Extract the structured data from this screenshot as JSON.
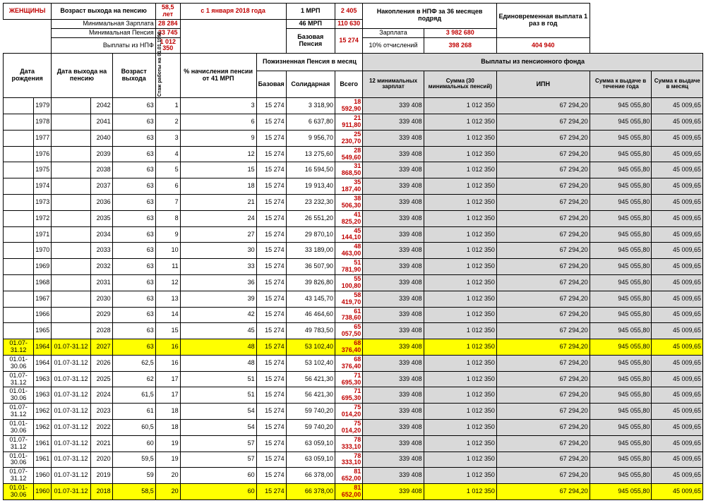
{
  "top": {
    "gender": "ЖЕНЩИНЫ",
    "retire_age_label": "Возраст выхода на пенсию",
    "retire_age": "58,5  лет",
    "from_date": "с 1 января 2018 года",
    "min_salary_label": "Минимальная  Зарплата",
    "min_salary": "28 284",
    "min_pension_label": "Минимальная  Пенсия",
    "min_pension": "33 745",
    "npf_payout_label": "Выплаты из НПФ",
    "npf_payout": "1 012 350",
    "mrp1_label": "1 МРП",
    "mrp1": "2 405",
    "mrp46_label": "46 МРП",
    "mrp46": "110 630",
    "base_pension_label": "Базовая Пенсия",
    "base_pension": "15 274",
    "npf36_label": "Накопления в НПФ за 36 месяцев подряд",
    "salary_label": "Зарплата",
    "salary_val": "3 982 680",
    "ded10_label": "10% отчислений",
    "ded10_val": "398 268",
    "once_label": "Единовременная выплата 1 раз в год",
    "once_val": "404 940"
  },
  "headers": {
    "birth": "Дата рождения",
    "retire_date": "Дата выхода на пенсию",
    "age": "Возраст выхода",
    "stazh": "Стаж работы на 01.01.1998",
    "pct": "% начисления пенсии от 41 МРП",
    "life_pension": "Пожизненная Пенсия в месяц",
    "base": "Базовая",
    "solid": "Солидарная",
    "total": "Всего",
    "fund": "Выплаты из пенсионного фонда",
    "min12": "12 минимальных зарплат",
    "sum30": "Сумма (30 минимальных пенсий)",
    "ipn": "ИПН",
    "year_pay": "Сумма к выдаче в течение года",
    "month_pay": "Сумма к выдаче в месяц"
  },
  "rows": [
    {
      "b1": "",
      "b2": "1979",
      "r1": "",
      "r2": "2042",
      "age": "63",
      "st": "1",
      "pct": "3",
      "base": "15 274",
      "sol": "3 318,90",
      "tot": "18 592,90",
      "m12": "339 408",
      "s30": "1 012 350",
      "ipn": "67 294,20",
      "yp": "945 055,80",
      "mp": "45 009,65"
    },
    {
      "b1": "",
      "b2": "1978",
      "r1": "",
      "r2": "2041",
      "age": "63",
      "st": "2",
      "pct": "6",
      "base": "15 274",
      "sol": "6 637,80",
      "tot": "21 911,80",
      "m12": "339 408",
      "s30": "1 012 350",
      "ipn": "67 294,20",
      "yp": "945 055,80",
      "mp": "45 009,65"
    },
    {
      "b1": "",
      "b2": "1977",
      "r1": "",
      "r2": "2040",
      "age": "63",
      "st": "3",
      "pct": "9",
      "base": "15 274",
      "sol": "9 956,70",
      "tot": "25 230,70",
      "m12": "339 408",
      "s30": "1 012 350",
      "ipn": "67 294,20",
      "yp": "945 055,80",
      "mp": "45 009,65"
    },
    {
      "b1": "",
      "b2": "1976",
      "r1": "",
      "r2": "2039",
      "age": "63",
      "st": "4",
      "pct": "12",
      "base": "15 274",
      "sol": "13 275,60",
      "tot": "28 549,60",
      "m12": "339 408",
      "s30": "1 012 350",
      "ipn": "67 294,20",
      "yp": "945 055,80",
      "mp": "45 009,65"
    },
    {
      "b1": "",
      "b2": "1975",
      "r1": "",
      "r2": "2038",
      "age": "63",
      "st": "5",
      "pct": "15",
      "base": "15 274",
      "sol": "16 594,50",
      "tot": "31 868,50",
      "m12": "339 408",
      "s30": "1 012 350",
      "ipn": "67 294,20",
      "yp": "945 055,80",
      "mp": "45 009,65"
    },
    {
      "b1": "",
      "b2": "1974",
      "r1": "",
      "r2": "2037",
      "age": "63",
      "st": "6",
      "pct": "18",
      "base": "15 274",
      "sol": "19 913,40",
      "tot": "35 187,40",
      "m12": "339 408",
      "s30": "1 012 350",
      "ipn": "67 294,20",
      "yp": "945 055,80",
      "mp": "45 009,65"
    },
    {
      "b1": "",
      "b2": "1973",
      "r1": "",
      "r2": "2036",
      "age": "63",
      "st": "7",
      "pct": "21",
      "base": "15 274",
      "sol": "23 232,30",
      "tot": "38 506,30",
      "m12": "339 408",
      "s30": "1 012 350",
      "ipn": "67 294,20",
      "yp": "945 055,80",
      "mp": "45 009,65"
    },
    {
      "b1": "",
      "b2": "1972",
      "r1": "",
      "r2": "2035",
      "age": "63",
      "st": "8",
      "pct": "24",
      "base": "15 274",
      "sol": "26 551,20",
      "tot": "41 825,20",
      "m12": "339 408",
      "s30": "1 012 350",
      "ipn": "67 294,20",
      "yp": "945 055,80",
      "mp": "45 009,65"
    },
    {
      "b1": "",
      "b2": "1971",
      "r1": "",
      "r2": "2034",
      "age": "63",
      "st": "9",
      "pct": "27",
      "base": "15 274",
      "sol": "29 870,10",
      "tot": "45 144,10",
      "m12": "339 408",
      "s30": "1 012 350",
      "ipn": "67 294,20",
      "yp": "945 055,80",
      "mp": "45 009,65"
    },
    {
      "b1": "",
      "b2": "1970",
      "r1": "",
      "r2": "2033",
      "age": "63",
      "st": "10",
      "pct": "30",
      "base": "15 274",
      "sol": "33 189,00",
      "tot": "48 463,00",
      "m12": "339 408",
      "s30": "1 012 350",
      "ipn": "67 294,20",
      "yp": "945 055,80",
      "mp": "45 009,65"
    },
    {
      "b1": "",
      "b2": "1969",
      "r1": "",
      "r2": "2032",
      "age": "63",
      "st": "11",
      "pct": "33",
      "base": "15 274",
      "sol": "36 507,90",
      "tot": "51 781,90",
      "m12": "339 408",
      "s30": "1 012 350",
      "ipn": "67 294,20",
      "yp": "945 055,80",
      "mp": "45 009,65"
    },
    {
      "b1": "",
      "b2": "1968",
      "r1": "",
      "r2": "2031",
      "age": "63",
      "st": "12",
      "pct": "36",
      "base": "15 274",
      "sol": "39 826,80",
      "tot": "55 100,80",
      "m12": "339 408",
      "s30": "1 012 350",
      "ipn": "67 294,20",
      "yp": "945 055,80",
      "mp": "45 009,65"
    },
    {
      "b1": "",
      "b2": "1967",
      "r1": "",
      "r2": "2030",
      "age": "63",
      "st": "13",
      "pct": "39",
      "base": "15 274",
      "sol": "43 145,70",
      "tot": "58 419,70",
      "m12": "339 408",
      "s30": "1 012 350",
      "ipn": "67 294,20",
      "yp": "945 055,80",
      "mp": "45 009,65"
    },
    {
      "b1": "",
      "b2": "1966",
      "r1": "",
      "r2": "2029",
      "age": "63",
      "st": "14",
      "pct": "42",
      "base": "15 274",
      "sol": "46 464,60",
      "tot": "61 738,60",
      "m12": "339 408",
      "s30": "1 012 350",
      "ipn": "67 294,20",
      "yp": "945 055,80",
      "mp": "45 009,65"
    },
    {
      "b1": "",
      "b2": "1965",
      "r1": "",
      "r2": "2028",
      "age": "63",
      "st": "15",
      "pct": "45",
      "base": "15 274",
      "sol": "49 783,50",
      "tot": "65 057,50",
      "m12": "339 408",
      "s30": "1 012 350",
      "ipn": "67 294,20",
      "yp": "945 055,80",
      "mp": "45 009,65"
    },
    {
      "b1": "01.07-31.12",
      "b2": "1964",
      "r1": "01.07-31.12",
      "r2": "2027",
      "age": "63",
      "st": "16",
      "pct": "48",
      "base": "15 274",
      "sol": "53 102,40",
      "tot": "68 376,40",
      "m12": "339 408",
      "s30": "1 012 350",
      "ipn": "67 294,20",
      "yp": "945 055,80",
      "mp": "45 009,65",
      "hl": true
    },
    {
      "b1": "01.01-30.06",
      "b2": "1964",
      "r1": "01.07-31.12",
      "r2": "2026",
      "age": "62,5",
      "st": "16",
      "pct": "48",
      "base": "15 274",
      "sol": "53 102,40",
      "tot": "68 376,40",
      "m12": "339 408",
      "s30": "1 012 350",
      "ipn": "67 294,20",
      "yp": "945 055,80",
      "mp": "45 009,65"
    },
    {
      "b1": "01.07-31.12",
      "b2": "1963",
      "r1": "01.07-31.12",
      "r2": "2025",
      "age": "62",
      "st": "17",
      "pct": "51",
      "base": "15 274",
      "sol": "56 421,30",
      "tot": "71 695,30",
      "m12": "339 408",
      "s30": "1 012 350",
      "ipn": "67 294,20",
      "yp": "945 055,80",
      "mp": "45 009,65"
    },
    {
      "b1": "01.01-30.06",
      "b2": "1963",
      "r1": "01.07-31.12",
      "r2": "2024",
      "age": "61,5",
      "st": "17",
      "pct": "51",
      "base": "15 274",
      "sol": "56 421,30",
      "tot": "71 695,30",
      "m12": "339 408",
      "s30": "1 012 350",
      "ipn": "67 294,20",
      "yp": "945 055,80",
      "mp": "45 009,65"
    },
    {
      "b1": "01.07-31.12",
      "b2": "1962",
      "r1": "01.07-31.12",
      "r2": "2023",
      "age": "61",
      "st": "18",
      "pct": "54",
      "base": "15 274",
      "sol": "59 740,20",
      "tot": "75 014,20",
      "m12": "339 408",
      "s30": "1 012 350",
      "ipn": "67 294,20",
      "yp": "945 055,80",
      "mp": "45 009,65"
    },
    {
      "b1": "01.01-30.06",
      "b2": "1962",
      "r1": "01.07-31.12",
      "r2": "2022",
      "age": "60,5",
      "st": "18",
      "pct": "54",
      "base": "15 274",
      "sol": "59 740,20",
      "tot": "75 014,20",
      "m12": "339 408",
      "s30": "1 012 350",
      "ipn": "67 294,20",
      "yp": "945 055,80",
      "mp": "45 009,65"
    },
    {
      "b1": "01.07-31.12",
      "b2": "1961",
      "r1": "01.07-31.12",
      "r2": "2021",
      "age": "60",
      "st": "19",
      "pct": "57",
      "base": "15 274",
      "sol": "63 059,10",
      "tot": "78 333,10",
      "m12": "339 408",
      "s30": "1 012 350",
      "ipn": "67 294,20",
      "yp": "945 055,80",
      "mp": "45 009,65"
    },
    {
      "b1": "01.01-30.06",
      "b2": "1961",
      "r1": "01.07-31.12",
      "r2": "2020",
      "age": "59,5",
      "st": "19",
      "pct": "57",
      "base": "15 274",
      "sol": "63 059,10",
      "tot": "78 333,10",
      "m12": "339 408",
      "s30": "1 012 350",
      "ipn": "67 294,20",
      "yp": "945 055,80",
      "mp": "45 009,65"
    },
    {
      "b1": "01.07-31.12",
      "b2": "1960",
      "r1": "01.07-31.12",
      "r2": "2019",
      "age": "59",
      "st": "20",
      "pct": "60",
      "base": "15 274",
      "sol": "66 378,00",
      "tot": "81 652,00",
      "m12": "339 408",
      "s30": "1 012 350",
      "ipn": "67 294,20",
      "yp": "945 055,80",
      "mp": "45 009,65"
    },
    {
      "b1": "01.01-30.06",
      "b2": "1960",
      "r1": "01.07-31.12",
      "r2": "2018",
      "age": "58,5",
      "st": "20",
      "pct": "60",
      "base": "15 274",
      "sol": "66 378,00",
      "tot": "81 652,00",
      "m12": "339 408",
      "s30": "1 012 350",
      "ipn": "67 294,20",
      "yp": "945 055,80",
      "mp": "45 009,65",
      "hl": true
    }
  ]
}
